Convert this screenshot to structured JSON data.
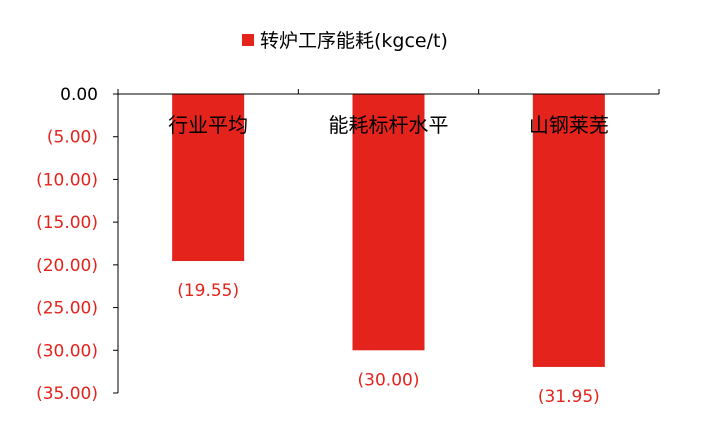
{
  "chart_data": {
    "type": "bar",
    "title": "",
    "xlabel": "",
    "ylabel": "",
    "categories": [
      "行业平均",
      "能耗标杆水平",
      "山钢莱芜"
    ],
    "series": [
      {
        "name": "转炉工序能耗(kgce/t)",
        "values": [
          -19.55,
          -30.0,
          -31.95
        ]
      }
    ],
    "data_labels": [
      "(19.55)",
      "(30.00)",
      "(31.95)"
    ],
    "ylim": [
      -35,
      0
    ],
    "yticks": [
      0,
      -5,
      -10,
      -15,
      -20,
      -25,
      -30,
      -35
    ],
    "ytick_labels": [
      "0.00",
      "(5.00)",
      "(10.00)",
      "(15.00)",
      "(20.00)",
      "(25.00)",
      "(30.00)",
      "(35.00)"
    ],
    "legend_position": "top-center",
    "grid": false,
    "colors": {
      "bar": "#e3231c",
      "negative_label": "#e3231c",
      "zero_label": "#000000",
      "axis": "#000000"
    }
  }
}
